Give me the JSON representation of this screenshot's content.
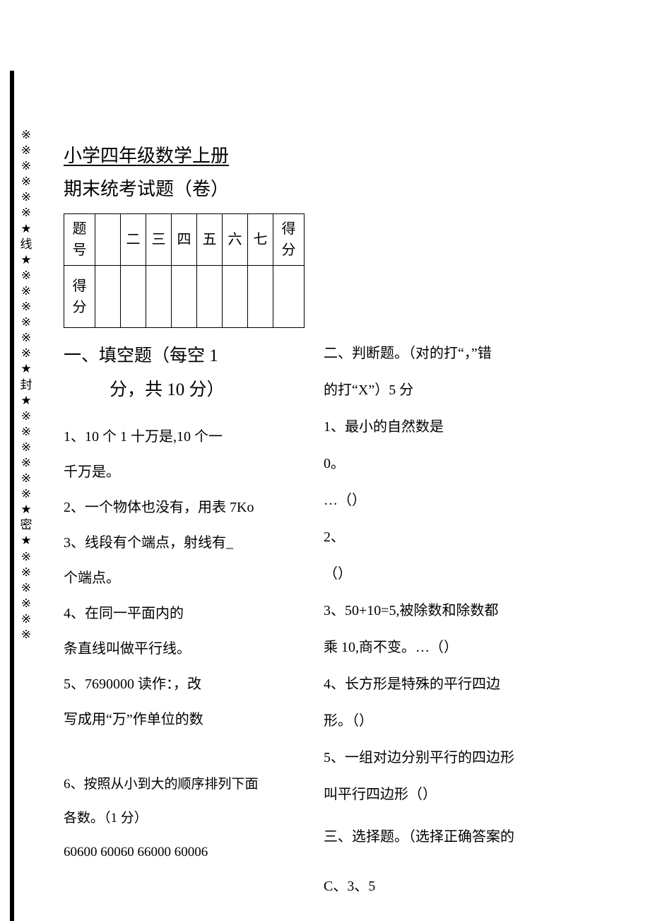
{
  "binding_marks": [
    "※",
    "※",
    "※",
    "※",
    "※",
    "※",
    "★",
    "线",
    "★",
    "※",
    "※",
    "※",
    "※",
    "※",
    "※",
    "★",
    "封",
    "★",
    "※",
    "※",
    "※",
    "※",
    "※",
    "※",
    "★",
    "密",
    "★",
    "※",
    "※",
    "※",
    "※",
    "※",
    "※"
  ],
  "header": {
    "title": "小学四年级数学上册",
    "subtitle": "期末统考试题（卷）"
  },
  "score_table": {
    "row1_label": "题号",
    "cols": [
      "",
      "二",
      "三",
      "四",
      "五",
      "六",
      "七",
      "得分"
    ],
    "row2_label": "得分"
  },
  "section1": {
    "heading_l1": "一、填空题（每空 1",
    "heading_l2": "分，共 10 分）",
    "q1_l1": "1、10 个 1 十万是,10 个一",
    "q1_l2": "千万是。",
    "q2": "2、一个物体也没有，用表 7Ko",
    "q3_l1": "3、线段有个端点，射线有_",
    "q3_l2": "个端点。",
    "q4_l1": "4、在同一平面内的",
    "q4_l2": "条直线叫做平行线。",
    "q5_l1": "5、7690000 读作：，改",
    "q5_l2": "写成用“万”作单位的数",
    "q6_l1": "6、按照从小到大的顺序排列下面",
    "q6_l2": "各数。（1 分）",
    "q6_l3": "60600 60060 66000 60006"
  },
  "section2": {
    "heading_l1": "二、判断题。（对的打“，”错",
    "heading_l2": "的打“X”）5 分",
    "q1_l1": "1、最小的自然数是",
    "q1_l2": "0。",
    "q1_l3": "…（）",
    "q2_l1": "2、",
    "q2_l2": "（）",
    "q3_l1": "3、50+10=5,被除数和除数都",
    "q3_l2": "乘 10,商不变。…（）",
    "q4_l1": "4、长方形是特殊的平行四边",
    "q4_l2": "形。（）",
    "q5_l1": "5、一组对边分别平行的四边形",
    "q5_l2": "叫平行四边形（）"
  },
  "section3": {
    "heading": "三、选择题。（选择正确答案的",
    "optC": "C、3、5"
  }
}
